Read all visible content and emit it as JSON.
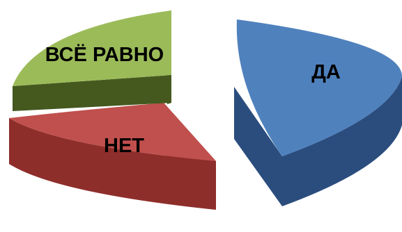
{
  "chart_data": {
    "type": "pie",
    "style": "3d-exploded",
    "legend": "none",
    "slices": [
      {
        "label": "ДА",
        "value": 50,
        "color": "#4F81BD",
        "side_color": "#2B4D7E"
      },
      {
        "label": "НЕТ",
        "value": 25,
        "color": "#C0504D",
        "side_color": "#8E2E2B"
      },
      {
        "label": "ВСЁ РАВНО",
        "value": 25,
        "color": "#9BBB59",
        "side_color": "#45591F"
      }
    ]
  }
}
